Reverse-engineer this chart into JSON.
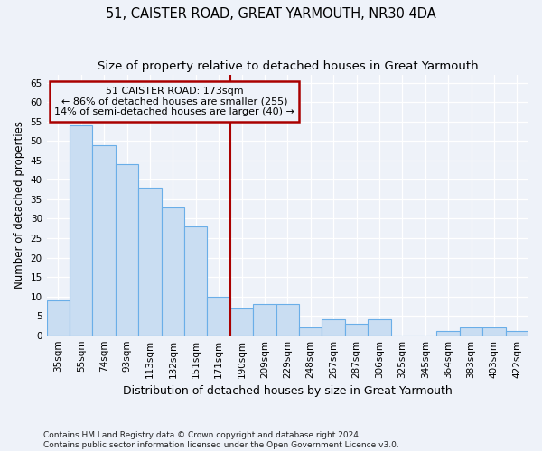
{
  "title": "51, CAISTER ROAD, GREAT YARMOUTH, NR30 4DA",
  "subtitle": "Size of property relative to detached houses in Great Yarmouth",
  "xlabel": "Distribution of detached houses by size in Great Yarmouth",
  "ylabel": "Number of detached properties",
  "categories": [
    "35sqm",
    "55sqm",
    "74sqm",
    "93sqm",
    "113sqm",
    "132sqm",
    "151sqm",
    "171sqm",
    "190sqm",
    "209sqm",
    "229sqm",
    "248sqm",
    "267sqm",
    "287sqm",
    "306sqm",
    "325sqm",
    "345sqm",
    "364sqm",
    "383sqm",
    "403sqm",
    "422sqm"
  ],
  "values": [
    9,
    54,
    49,
    44,
    38,
    33,
    28,
    10,
    7,
    8,
    8,
    2,
    4,
    3,
    4,
    0,
    0,
    1,
    2,
    2,
    1
  ],
  "bar_color": "#c9ddf2",
  "bar_edge_color": "#6aaee8",
  "vline_color": "#aa0000",
  "annotation_text": "51 CAISTER ROAD: 173sqm\n← 86% of detached houses are smaller (255)\n14% of semi-detached houses are larger (40) →",
  "annotation_box_color": "#aa0000",
  "ylim": [
    0,
    67
  ],
  "yticks": [
    0,
    5,
    10,
    15,
    20,
    25,
    30,
    35,
    40,
    45,
    50,
    55,
    60,
    65
  ],
  "footer": "Contains HM Land Registry data © Crown copyright and database right 2024.\nContains public sector information licensed under the Open Government Licence v3.0.",
  "bg_color": "#eef2f9",
  "grid_color": "#ffffff",
  "title_fontsize": 10.5,
  "subtitle_fontsize": 9.5,
  "xlabel_fontsize": 9,
  "ylabel_fontsize": 8.5,
  "tick_fontsize": 7.5,
  "annotation_fontsize": 8,
  "footer_fontsize": 6.5
}
